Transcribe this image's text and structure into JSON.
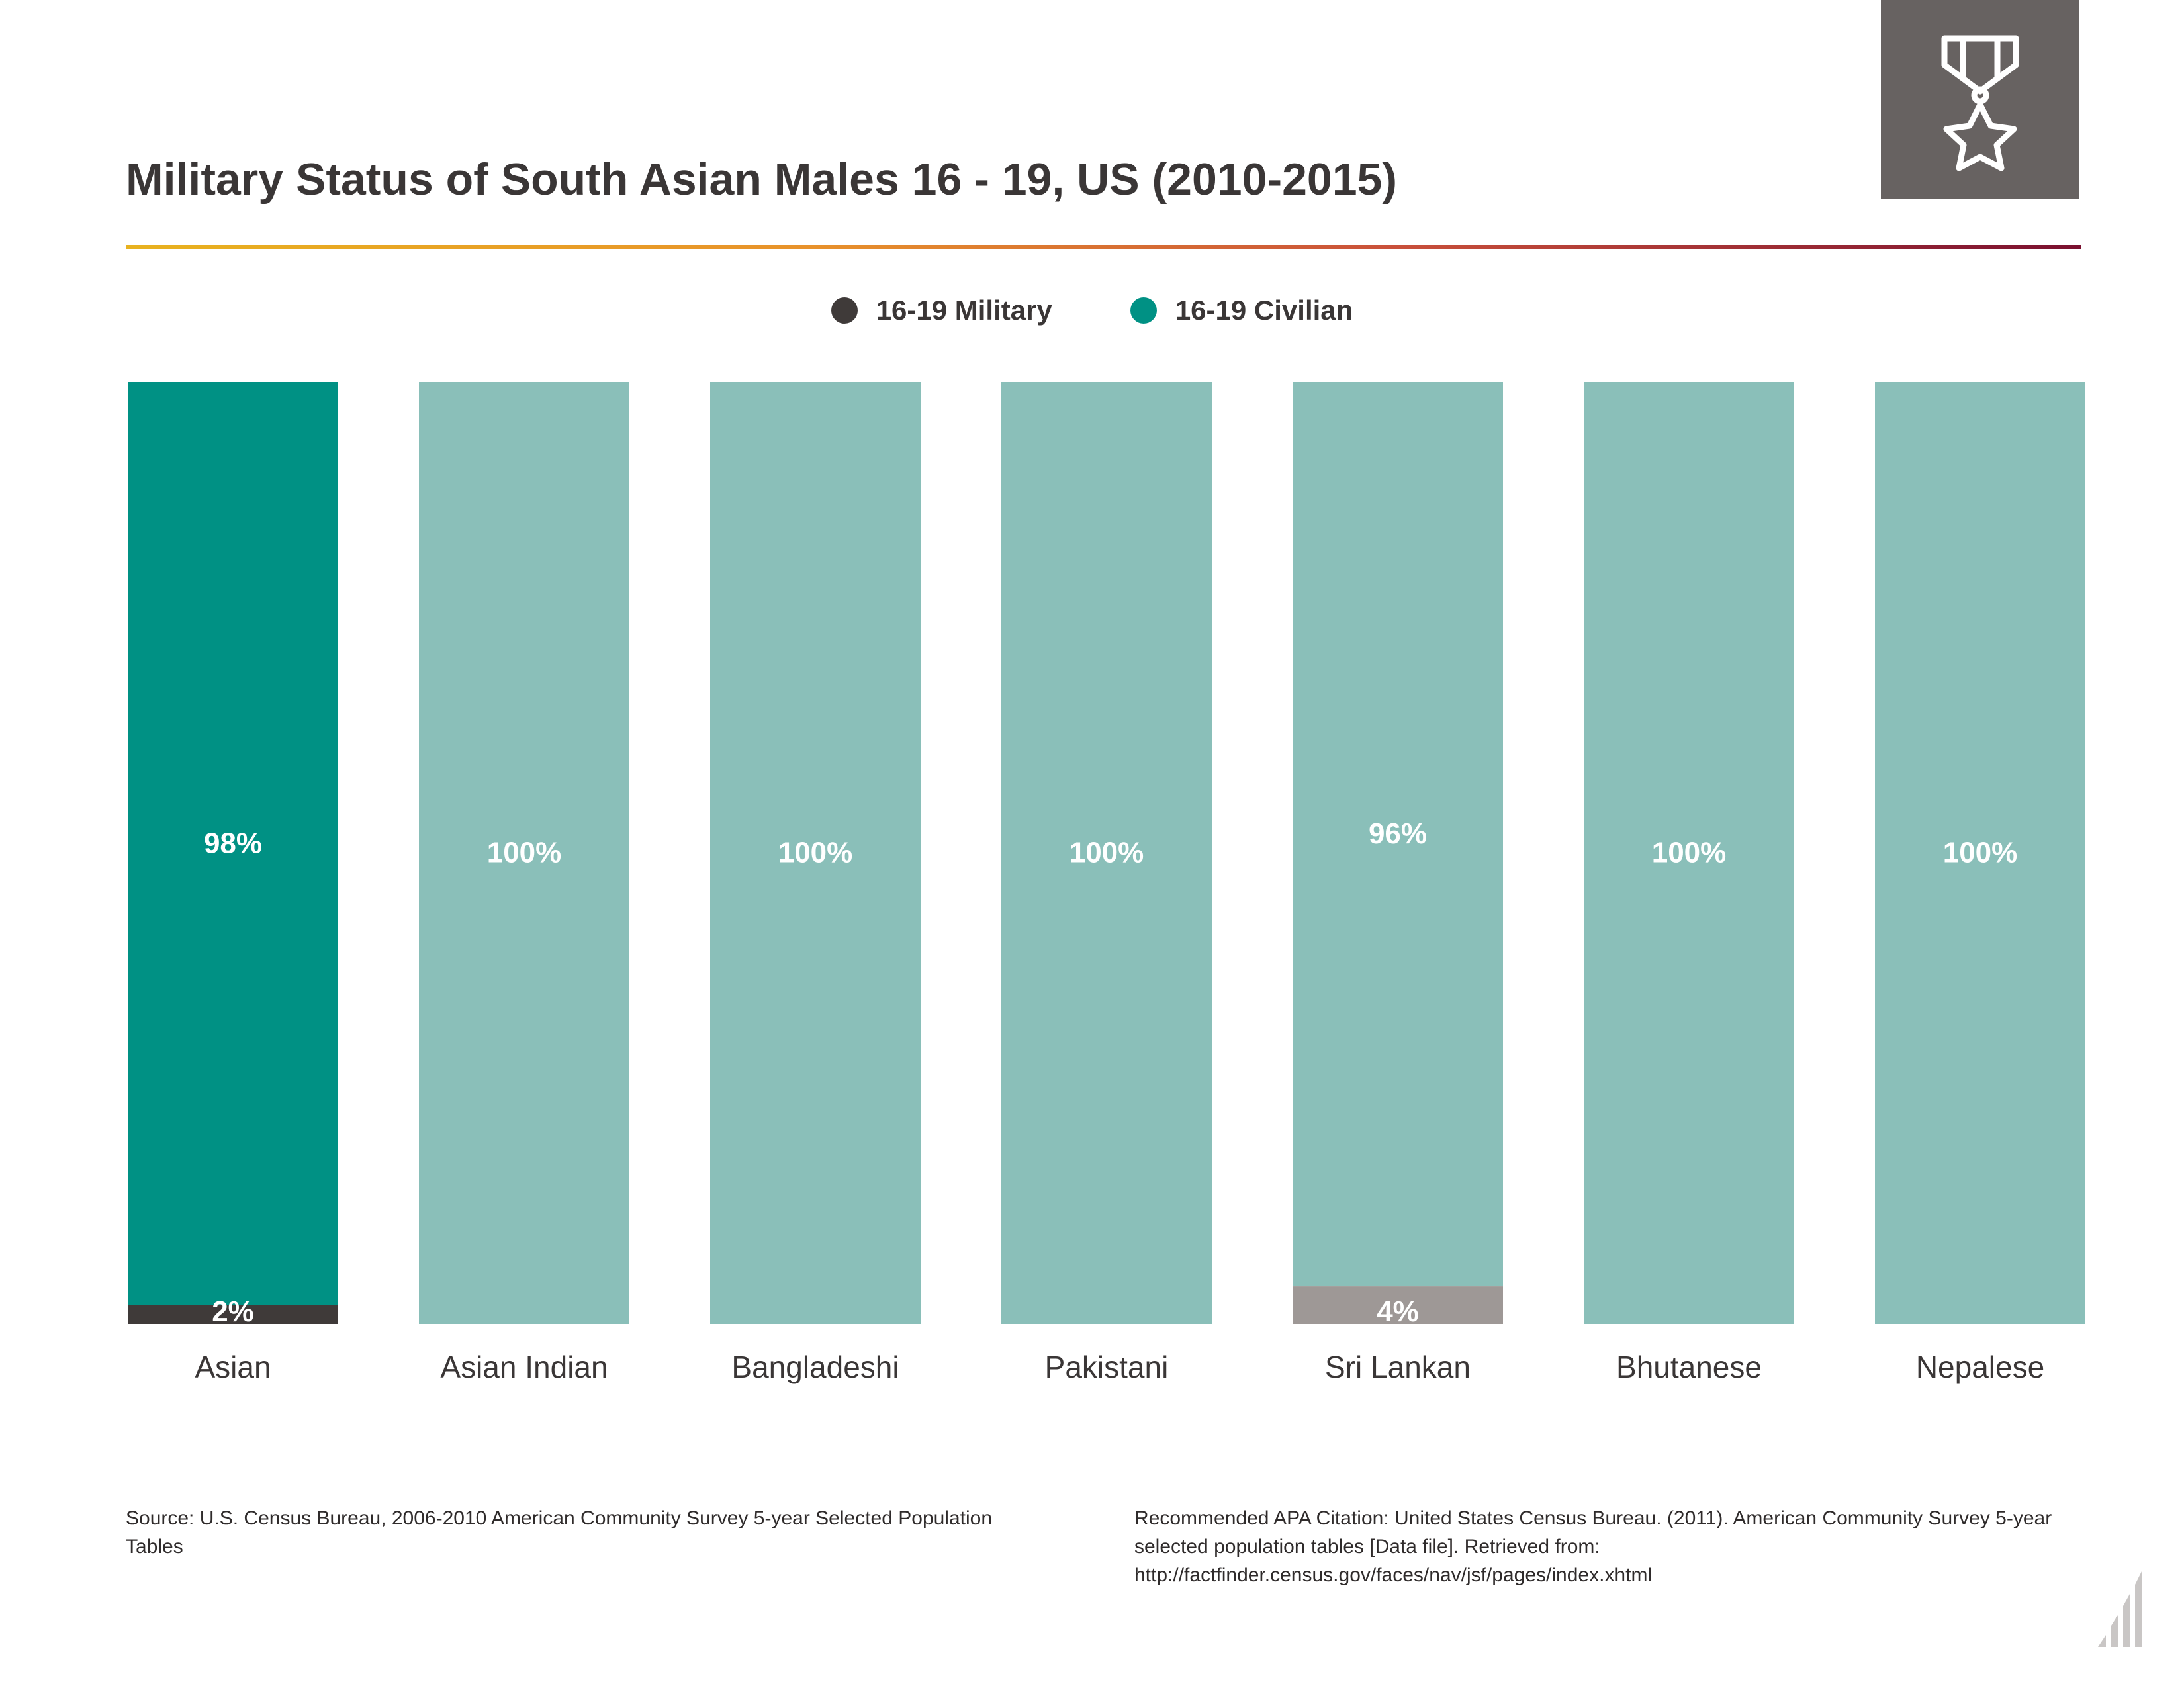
{
  "title": "Military Status of South Asian Males 16 - 19, US (2010-2015)",
  "badge_icon": "military-medal-icon",
  "chart_data": {
    "type": "bar",
    "stacked": true,
    "percent_scale": true,
    "ylim": [
      0,
      100
    ],
    "grid": false,
    "legend_position": "top-center",
    "categories": [
      "Asian",
      "Asian Indian",
      "Bangladeshi",
      "Pakistani",
      "Sri Lankan",
      "Bhutanese",
      "Nepalese"
    ],
    "series": [
      {
        "name": "16-19 Military",
        "values": [
          2,
          0,
          0,
          0,
          4,
          0,
          0
        ],
        "labels": [
          "2%",
          "",
          "",
          "",
          "4%",
          "",
          ""
        ],
        "colors": [
          "#3f3a39",
          "#9e9896",
          "#9e9896",
          "#9e9896",
          "#9e9896",
          "#9e9896",
          "#9e9896"
        ]
      },
      {
        "name": "16-19 Civilian",
        "values": [
          98,
          100,
          100,
          100,
          96,
          100,
          100
        ],
        "labels": [
          "98%",
          "100%",
          "100%",
          "100%",
          "96%",
          "100%",
          "100%"
        ],
        "colors": [
          "#009184",
          "#8abfb9",
          "#8abfb9",
          "#8abfb9",
          "#8abfb9",
          "#8abfb9",
          "#8abfb9"
        ]
      }
    ],
    "legend": [
      {
        "label": "16-19 Military",
        "color": "#3f3a39"
      },
      {
        "label": "16-19 Civilian",
        "color": "#009184"
      }
    ]
  },
  "footer": {
    "source": "Source:  U.S. Census Bureau, 2006-2010 American Community Survey 5-year Selected Population Tables",
    "citation": "Recommended APA Citation: United States Census Bureau. (2011). American Community Survey 5-year selected population tables [Data file]. Retrieved from: http://factfinder.census.gov/faces/nav/jsf/pages/index.xhtml"
  }
}
